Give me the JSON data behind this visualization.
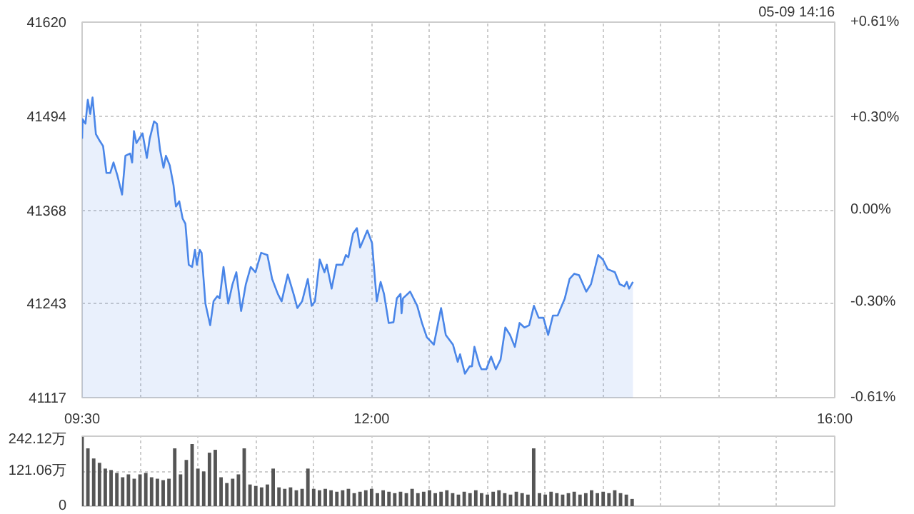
{
  "chart_data": [
    {
      "type": "area",
      "annotations": [
        "05-09 14:16"
      ],
      "color": "#4a86e8",
      "x": [
        9.5,
        9.504,
        9.529,
        9.549,
        9.57,
        9.59,
        9.619,
        9.652,
        9.681,
        9.71,
        9.743,
        9.771,
        9.804,
        9.845,
        9.874,
        9.915,
        9.932,
        9.948,
        9.969,
        10.022,
        10.059,
        10.084,
        10.121,
        10.146,
        10.174,
        10.203,
        10.224,
        10.257,
        10.289,
        10.31,
        10.339,
        10.368,
        10.392,
        10.421,
        10.45,
        10.475,
        10.491,
        10.516,
        10.532,
        10.565,
        10.606,
        10.635,
        10.668,
        10.688,
        10.721,
        10.762,
        10.799,
        10.832,
        10.873,
        10.914,
        10.956,
        10.997,
        11.046,
        11.1,
        11.141,
        11.19,
        11.223,
        11.276,
        11.326,
        11.359,
        11.4,
        11.449,
        11.482,
        11.511,
        11.552,
        11.593,
        11.613,
        11.655,
        11.696,
        11.749,
        11.778,
        11.799,
        11.84,
        11.873,
        11.901,
        11.963,
        12.004,
        12.045,
        12.078,
        12.107,
        12.148,
        12.189,
        12.218,
        12.25,
        12.259,
        12.271,
        12.333,
        12.394,
        12.435,
        12.477,
        12.538,
        12.6,
        12.641,
        12.703,
        12.744,
        12.764,
        12.806,
        12.847,
        12.867,
        12.888,
        12.929,
        12.949,
        12.991,
        13.032,
        13.073,
        13.114,
        13.155,
        13.196,
        13.237,
        13.278,
        13.32,
        13.361,
        13.402,
        13.443,
        13.484,
        13.525,
        13.566,
        13.607,
        13.669,
        13.71,
        13.751,
        13.792,
        13.854,
        13.895,
        13.957,
        13.998,
        14.039,
        14.101,
        14.142,
        14.183,
        14.204,
        14.224,
        14.257
      ],
      "values": [
        41464,
        41490,
        41484,
        41516,
        41497,
        41519,
        41470,
        41461,
        41454,
        41418,
        41418,
        41432,
        41415,
        41389,
        41441,
        41444,
        41432,
        41474,
        41458,
        41471,
        41438,
        41464,
        41487,
        41484,
        41448,
        41425,
        41441,
        41428,
        41402,
        41373,
        41380,
        41357,
        41350,
        41295,
        41292,
        41315,
        41295,
        41315,
        41311,
        41243,
        41214,
        41246,
        41253,
        41250,
        41292,
        41243,
        41269,
        41285,
        41233,
        41269,
        41292,
        41285,
        41311,
        41308,
        41276,
        41256,
        41246,
        41282,
        41256,
        41237,
        41246,
        41276,
        41240,
        41246,
        41302,
        41285,
        41295,
        41263,
        41295,
        41295,
        41308,
        41305,
        41337,
        41344,
        41318,
        41341,
        41324,
        41246,
        41272,
        41256,
        41217,
        41218,
        41250,
        41256,
        41230,
        41250,
        41259,
        41240,
        41217,
        41198,
        41188,
        41237,
        41201,
        41188,
        41165,
        41175,
        41149,
        41159,
        41159,
        41185,
        41162,
        41155,
        41155,
        41172,
        41155,
        41168,
        41211,
        41201,
        41185,
        41217,
        41211,
        41214,
        41240,
        41224,
        41224,
        41201,
        41227,
        41227,
        41250,
        41276,
        41283,
        41281,
        41259,
        41269,
        41308,
        41302,
        41289,
        41285,
        41269,
        41266,
        41272,
        41263,
        41272
      ],
      "xlim": [
        9.5,
        16
      ],
      "xticks": [
        {
          "value": 9.5,
          "label": "09:30"
        },
        {
          "value": 10,
          "label": null
        },
        {
          "value": 10.5,
          "label": null
        },
        {
          "value": 11,
          "label": null
        },
        {
          "value": 11.5,
          "label": null
        },
        {
          "value": 12,
          "label": "12:00"
        },
        {
          "value": 12.5,
          "label": null
        },
        {
          "value": 13,
          "label": null
        },
        {
          "value": 13.5,
          "label": null
        },
        {
          "value": 14,
          "label": null
        },
        {
          "value": 14.5,
          "label": null
        },
        {
          "value": 15,
          "label": null
        },
        {
          "value": 15.5,
          "label": null
        },
        {
          "value": 16,
          "label": "16:00"
        }
      ],
      "ylim": [
        41117,
        41620
      ],
      "yticks": [
        41117,
        41243,
        41368,
        41494,
        41620
      ],
      "y2lim": [
        -0.61,
        0.61
      ],
      "y2ticks": [
        {
          "value": -0.61,
          "label": "-0.61%"
        },
        {
          "value": -0.3,
          "label": "-0.30%"
        },
        {
          "value": 0,
          "label": "0.00%"
        },
        {
          "value": 0.3,
          "label": "+0.30%"
        },
        {
          "value": 0.61,
          "label": "+0.61%"
        }
      ],
      "grid": true
    },
    {
      "type": "bar",
      "color": "#555555",
      "tick_labels": "y",
      "x": [
        9.5,
        9.55,
        9.6,
        9.65,
        9.7,
        9.75,
        9.8,
        9.85,
        9.9,
        9.95,
        10.0,
        10.05,
        10.1,
        10.15,
        10.2,
        10.25,
        10.3,
        10.35,
        10.4,
        10.45,
        10.5,
        10.55,
        10.6,
        10.65,
        10.7,
        10.75,
        10.8,
        10.85,
        10.9,
        10.95,
        11.0,
        11.05,
        11.1,
        11.15,
        11.2,
        11.25,
        11.3,
        11.35,
        11.4,
        11.45,
        11.5,
        11.55,
        11.6,
        11.65,
        11.7,
        11.75,
        11.8,
        11.85,
        11.9,
        11.95,
        12.0,
        12.05,
        12.1,
        12.15,
        12.2,
        12.25,
        12.3,
        12.35,
        12.4,
        12.45,
        12.5,
        12.55,
        12.6,
        12.65,
        12.7,
        12.75,
        12.8,
        12.85,
        12.9,
        12.95,
        13.0,
        13.05,
        13.1,
        13.15,
        13.2,
        13.25,
        13.3,
        13.35,
        13.4,
        13.45,
        13.5,
        13.55,
        13.6,
        13.65,
        13.7,
        13.75,
        13.8,
        13.85,
        13.9,
        13.95,
        14.0,
        14.05,
        14.1,
        14.15,
        14.2,
        14.25
      ],
      "values": [
        240,
        200,
        165,
        150,
        130,
        125,
        115,
        100,
        110,
        95,
        110,
        115,
        100,
        95,
        90,
        95,
        200,
        110,
        160,
        215,
        130,
        120,
        185,
        195,
        100,
        80,
        95,
        110,
        200,
        75,
        70,
        65,
        75,
        130,
        65,
        60,
        65,
        55,
        60,
        130,
        60,
        55,
        60,
        55,
        50,
        55,
        60,
        45,
        50,
        55,
        60,
        45,
        55,
        50,
        45,
        50,
        45,
        60,
        45,
        50,
        55,
        45,
        50,
        55,
        45,
        40,
        50,
        45,
        55,
        45,
        40,
        50,
        55,
        45,
        40,
        50,
        45,
        40,
        200,
        45,
        40,
        50,
        45,
        40,
        45,
        50,
        40,
        45,
        55,
        45,
        50,
        45,
        55,
        45,
        40,
        25
      ],
      "xlim": [
        9.5,
        16
      ],
      "xticks": [
        9.5,
        10,
        10.5,
        11,
        11.5,
        12,
        12.5,
        13,
        13.5,
        14,
        14.5,
        15,
        15.5,
        16
      ],
      "ylim": [
        0,
        242.12
      ],
      "yticks": [
        {
          "value": 0,
          "label": "0"
        },
        {
          "value": 121.06,
          "label": "121.06万"
        },
        {
          "value": 242.12,
          "label": "242.12万"
        }
      ],
      "grid": true
    }
  ]
}
